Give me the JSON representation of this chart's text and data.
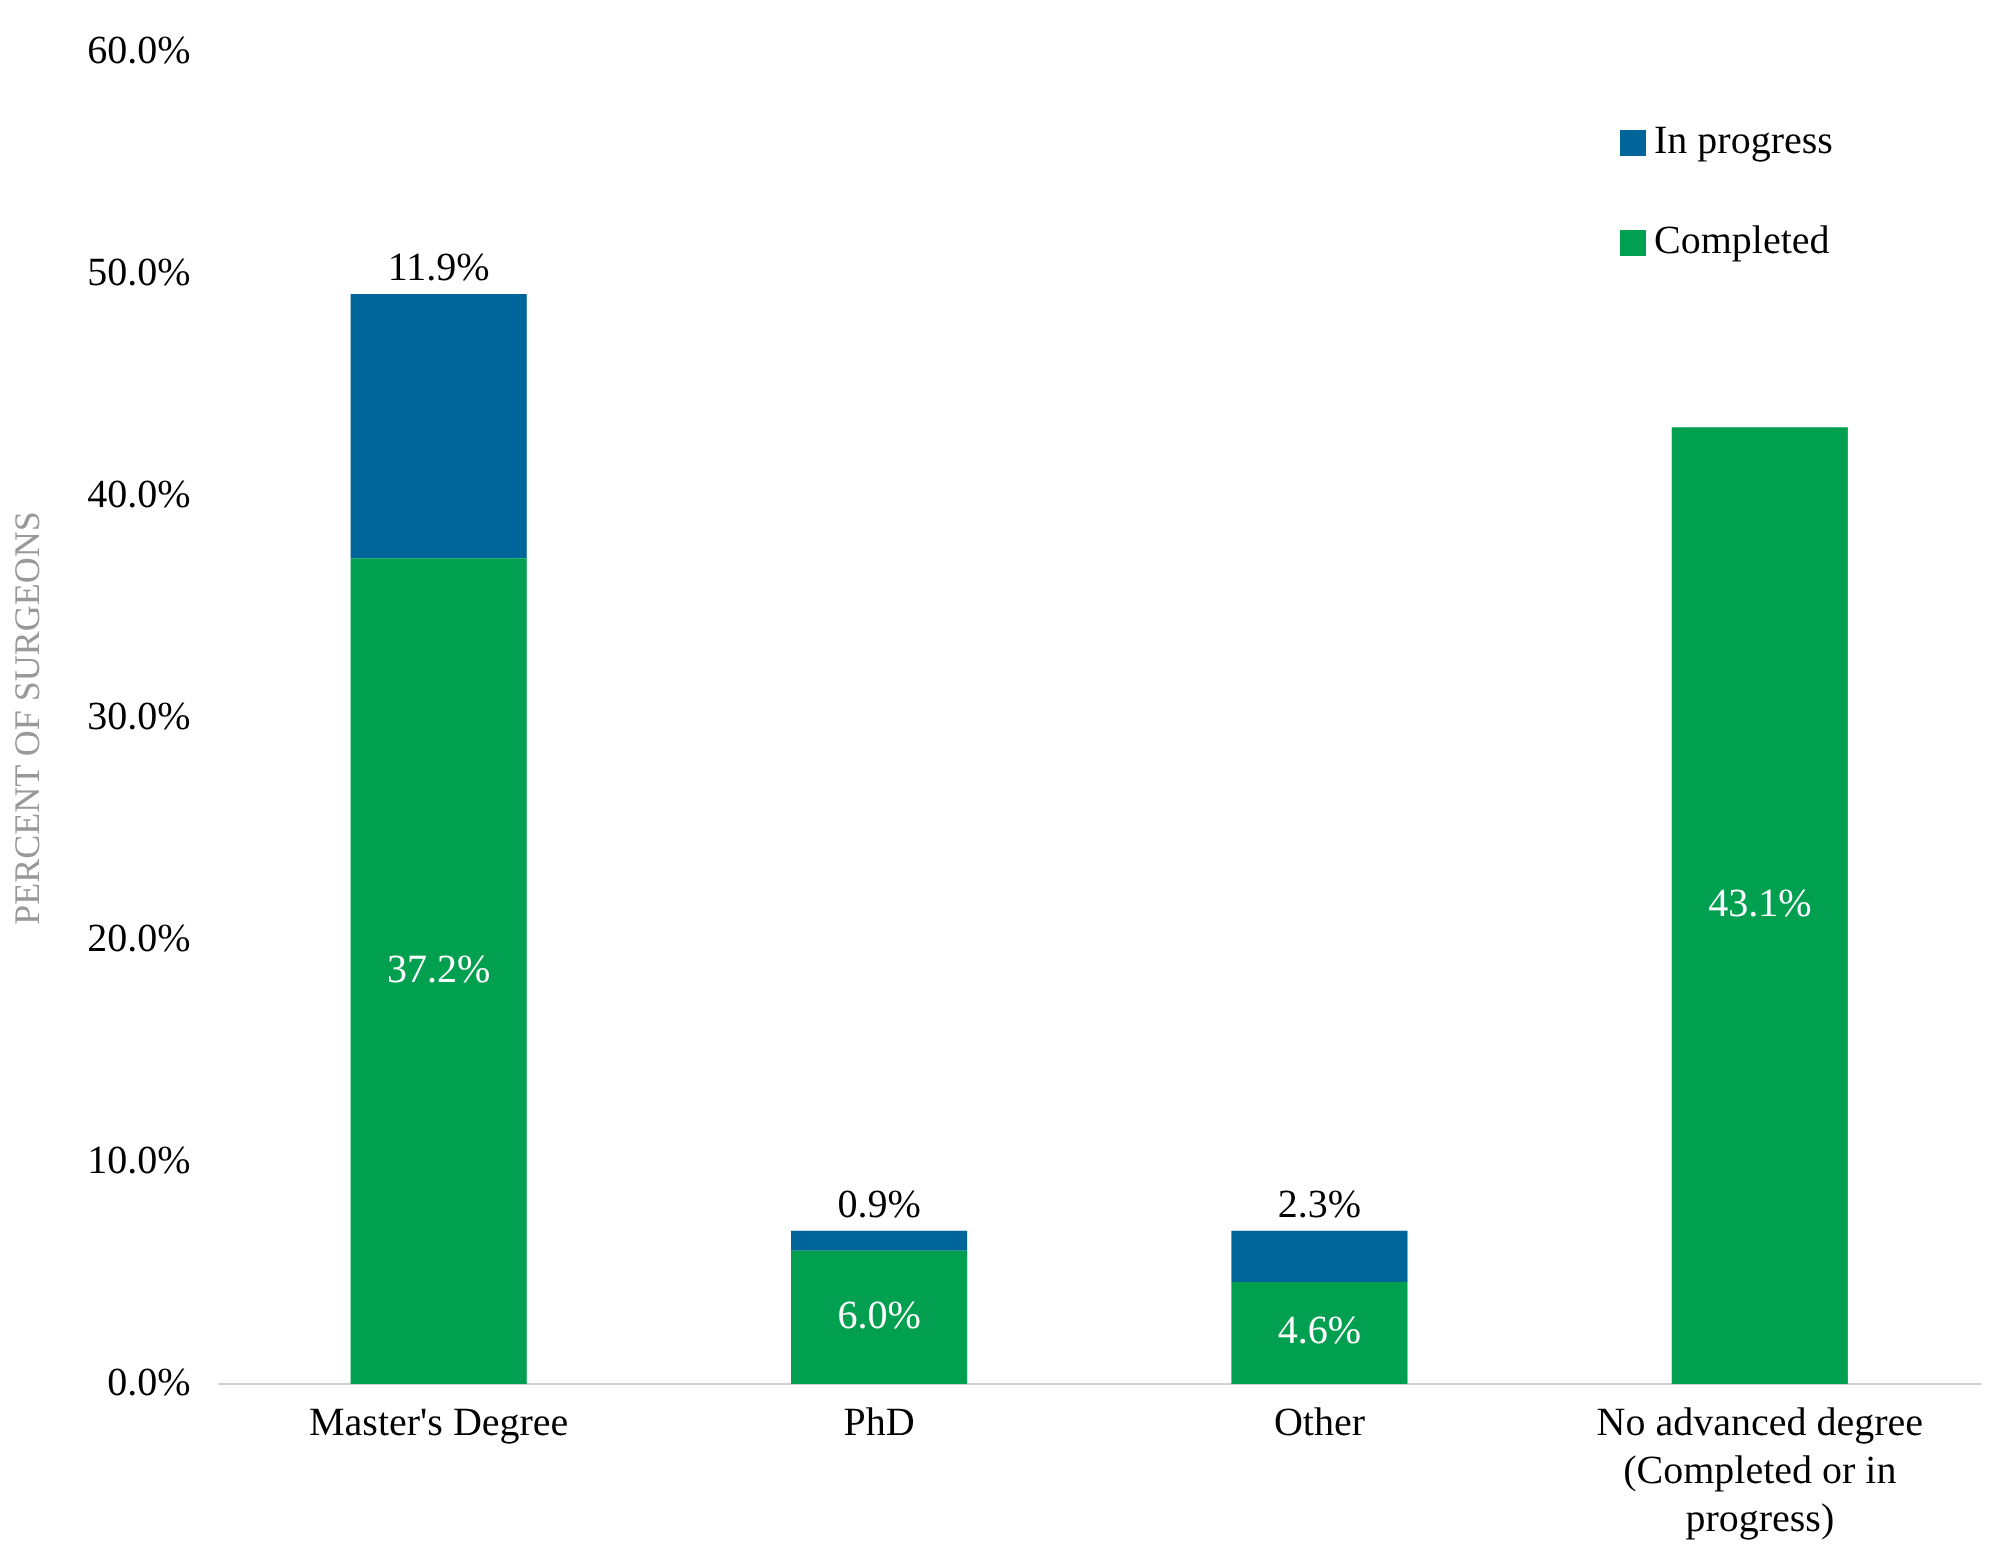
{
  "chart_data": {
    "type": "bar",
    "stacked": true,
    "ylabel": "PERCENT OF SURGEONS",
    "categories": [
      "Master's Degree",
      "PhD",
      "Other",
      "No advanced degree (Completed or in progress)"
    ],
    "series": [
      {
        "name": "Completed",
        "color": "#00a050",
        "values": [
          37.2,
          6.0,
          4.6,
          43.1
        ],
        "value_labels": [
          "37.2%",
          "6.0%",
          "4.6%",
          "43.1%"
        ]
      },
      {
        "name": "In progress",
        "color": "#006699",
        "values": [
          11.9,
          0.9,
          2.3,
          null
        ],
        "value_labels": [
          "11.9%",
          "0.9%",
          "2.3%",
          null
        ]
      }
    ],
    "ylim": [
      0,
      60
    ],
    "yticks": [
      {
        "value": 0,
        "label": "0.0%"
      },
      {
        "value": 10,
        "label": "10.0%"
      },
      {
        "value": 20,
        "label": "20.0%"
      },
      {
        "value": 30,
        "label": "30.0%"
      },
      {
        "value": 40,
        "label": "40.0%"
      },
      {
        "value": 50,
        "label": "50.0%"
      },
      {
        "value": 60,
        "label": "60.0%"
      }
    ],
    "grid": false,
    "legend": "top right"
  }
}
